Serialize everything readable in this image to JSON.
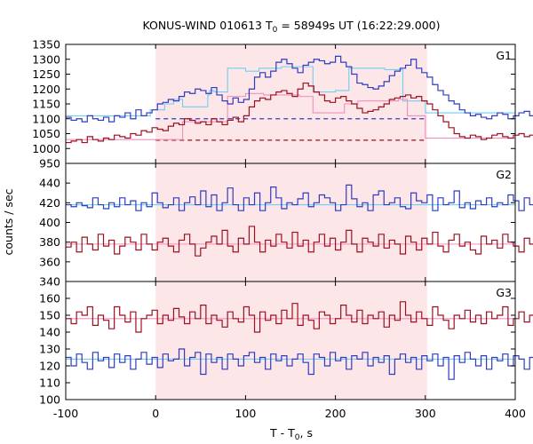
{
  "title_prefix": "KONUS-WIND 010613 T",
  "title_sub": "0",
  "title_suffix": " = 58949s UT (16:22:29.000)",
  "xlabel_prefix": "T - T",
  "xlabel_sub": "0",
  "xlabel_suffix": ", s",
  "ylabel": "counts / sec",
  "colors": {
    "blue": "#2f3cbf",
    "red": "#9c1020",
    "fit_blue": "#6fcff0",
    "fit_pink": "#f08fbf",
    "shade": "#fde6e8",
    "axis": "#000000"
  },
  "chart_data": [
    {
      "type": "line",
      "label": "G1",
      "xlim": [
        -100,
        400
      ],
      "ylim": [
        950,
        1350
      ],
      "x_ticks": [
        -100,
        0,
        100,
        200,
        300,
        400
      ],
      "y_ticks": [
        950,
        1000,
        1050,
        1100,
        1150,
        1200,
        1250,
        1300,
        1350
      ],
      "shaded_interval": [
        0,
        302
      ],
      "bin_start": -100,
      "bin_width": 6,
      "series": [
        {
          "color": "blue",
          "values": [
            1105,
            1095,
            1100,
            1090,
            1110,
            1100,
            1095,
            1105,
            1090,
            1110,
            1105,
            1120,
            1100,
            1130,
            1110,
            1120,
            1130,
            1150,
            1155,
            1165,
            1160,
            1175,
            1190,
            1185,
            1200,
            1195,
            1185,
            1205,
            1180,
            1160,
            1150,
            1170,
            1155,
            1165,
            1200,
            1240,
            1255,
            1240,
            1260,
            1290,
            1300,
            1285,
            1270,
            1255,
            1280,
            1290,
            1300,
            1295,
            1285,
            1290,
            1310,
            1290,
            1275,
            1250,
            1220,
            1215,
            1205,
            1200,
            1210,
            1225,
            1245,
            1260,
            1270,
            1280,
            1300,
            1270,
            1255,
            1240,
            1215,
            1195,
            1180,
            1160,
            1150,
            1130,
            1120,
            1110,
            1115,
            1105,
            1100,
            1110,
            1120,
            1115,
            1100,
            1110,
            1120,
            1125,
            1110,
            1105
          ]
        },
        {
          "color": "red",
          "values": [
            1020,
            1025,
            1030,
            1020,
            1040,
            1030,
            1025,
            1035,
            1030,
            1045,
            1040,
            1035,
            1050,
            1045,
            1060,
            1055,
            1070,
            1065,
            1060,
            1075,
            1085,
            1080,
            1100,
            1095,
            1085,
            1090,
            1080,
            1100,
            1090,
            1080,
            1095,
            1105,
            1090,
            1110,
            1140,
            1160,
            1170,
            1165,
            1180,
            1190,
            1195,
            1185,
            1175,
            1200,
            1220,
            1210,
            1190,
            1180,
            1160,
            1155,
            1170,
            1175,
            1160,
            1150,
            1135,
            1120,
            1125,
            1130,
            1140,
            1150,
            1165,
            1170,
            1175,
            1180,
            1170,
            1175,
            1160,
            1150,
            1130,
            1110,
            1090,
            1070,
            1050,
            1040,
            1035,
            1045,
            1040,
            1030,
            1035,
            1045,
            1050,
            1040,
            1035,
            1045,
            1050,
            1040,
            1045,
            1050
          ]
        }
      ],
      "fits": [
        {
          "color": "fit_blue",
          "steps": [
            [
              -100,
              1110
            ],
            [
              -6,
              1130
            ],
            [
              10,
              1150
            ],
            [
              20,
              1165
            ],
            [
              30,
              1140
            ],
            [
              58,
              1180
            ],
            [
              60,
              1195
            ],
            [
              65,
              1190
            ],
            [
              80,
              1270
            ],
            [
              100,
              1260
            ],
            [
              115,
              1270
            ],
            [
              140,
              1275
            ],
            [
              160,
              1275
            ],
            [
              175,
              1190
            ],
            [
              200,
              1195
            ],
            [
              215,
              1270
            ],
            [
              255,
              1265
            ],
            [
              275,
              1160
            ],
            [
              300,
              1120
            ],
            [
              400,
              1120
            ]
          ]
        },
        {
          "color": "fit_pink",
          "steps": [
            [
              -100,
              1030
            ],
            [
              -6,
              1030
            ],
            [
              30,
              1090
            ],
            [
              80,
              1175
            ],
            [
              100,
              1185
            ],
            [
              120,
              1180
            ],
            [
              160,
              1175
            ],
            [
              175,
              1120
            ],
            [
              210,
              1150
            ],
            [
              225,
              1160
            ],
            [
              270,
              1165
            ],
            [
              280,
              1110
            ],
            [
              300,
              1035
            ],
            [
              400,
              1035
            ]
          ]
        }
      ],
      "dashed_levels": [
        {
          "color": "blue",
          "value": 1100,
          "xrange": [
            0,
            302
          ]
        },
        {
          "color": "red",
          "value": 1028,
          "xrange": [
            0,
            302
          ]
        }
      ]
    },
    {
      "type": "line",
      "label": "G2",
      "xlim": [
        -100,
        400
      ],
      "ylim": [
        340,
        460
      ],
      "x_ticks": [
        -100,
        0,
        100,
        200,
        300,
        400
      ],
      "y_ticks": [
        340,
        360,
        380,
        400,
        420,
        440
      ],
      "shaded_interval": [
        0,
        302
      ],
      "bin_start": -100,
      "bin_width": 6,
      "series": [
        {
          "color": "blue",
          "values": [
            418,
            416,
            420,
            417,
            415,
            425,
            418,
            414,
            420,
            416,
            425,
            418,
            422,
            412,
            420,
            416,
            430,
            420,
            415,
            418,
            425,
            412,
            420,
            426,
            418,
            432,
            416,
            428,
            412,
            420,
            435,
            418,
            412,
            425,
            418,
            430,
            412,
            420,
            436,
            425,
            414,
            420,
            418,
            424,
            430,
            416,
            420,
            428,
            425,
            420,
            412,
            418,
            438,
            424,
            416,
            420,
            412,
            428,
            432,
            418,
            420,
            425,
            416,
            414,
            430,
            422,
            420,
            428,
            412,
            425,
            418,
            420,
            432,
            415,
            420,
            414,
            422,
            418,
            425,
            416,
            420,
            418,
            428,
            422,
            412,
            425,
            418,
            420
          ]
        },
        {
          "color": "red",
          "values": [
            375,
            380,
            370,
            385,
            378,
            372,
            388,
            376,
            382,
            368,
            376,
            385,
            380,
            372,
            388,
            378,
            372,
            380,
            384,
            376,
            370,
            382,
            388,
            378,
            366,
            374,
            380,
            386,
            378,
            392,
            376,
            370,
            384,
            378,
            396,
            380,
            370,
            382,
            376,
            388,
            380,
            374,
            390,
            376,
            382,
            370,
            380,
            388,
            376,
            384,
            372,
            380,
            392,
            378,
            370,
            384,
            380,
            376,
            388,
            374,
            382,
            378,
            368,
            386,
            380,
            372,
            384,
            378,
            390,
            376,
            370,
            382,
            388,
            376,
            380,
            372,
            368,
            386,
            378,
            382,
            374,
            388,
            380,
            376,
            370,
            384,
            378,
            382
          ]
        }
      ],
      "fits": [
        {
          "color": "fit_blue",
          "steps": [
            [
              -100,
              418
            ],
            [
              400,
              418
            ]
          ]
        },
        {
          "color": "fit_pink",
          "steps": [
            [
              -100,
              378
            ],
            [
              400,
              378
            ]
          ]
        }
      ],
      "dashed_levels": []
    },
    {
      "type": "line",
      "label": "G3",
      "xlim": [
        -100,
        400
      ],
      "ylim": [
        100,
        170
      ],
      "x_ticks": [
        -100,
        0,
        100,
        200,
        300,
        400
      ],
      "y_ticks": [
        100,
        110,
        120,
        130,
        140,
        150,
        160
      ],
      "shaded_interval": [
        0,
        302
      ],
      "bin_start": -100,
      "bin_width": 6,
      "series": [
        {
          "color": "red",
          "values": [
            148,
            145,
            152,
            150,
            155,
            144,
            150,
            147,
            142,
            155,
            150,
            146,
            152,
            140,
            148,
            150,
            153,
            145,
            150,
            147,
            154,
            149,
            145,
            152,
            148,
            156,
            145,
            150,
            147,
            143,
            152,
            148,
            146,
            155,
            150,
            140,
            152,
            147,
            150,
            145,
            153,
            148,
            157,
            144,
            150,
            147,
            142,
            152,
            150,
            145,
            148,
            156,
            150,
            146,
            153,
            145,
            150,
            148,
            152,
            143,
            150,
            147,
            158,
            150,
            146,
            152,
            148,
            144,
            155,
            150,
            147,
            142,
            150,
            148,
            153,
            146,
            150,
            145,
            152,
            148,
            150,
            155,
            144,
            148,
            152,
            146,
            150,
            143
          ]
        },
        {
          "color": "blue",
          "values": [
            125,
            120,
            127,
            122,
            118,
            128,
            123,
            125,
            119,
            127,
            122,
            126,
            118,
            124,
            128,
            121,
            125,
            119,
            127,
            123,
            124,
            130,
            120,
            125,
            128,
            115,
            127,
            122,
            125,
            118,
            127,
            124,
            120,
            126,
            128,
            122,
            125,
            118,
            127,
            123,
            126,
            120,
            124,
            127,
            122,
            115,
            127,
            125,
            120,
            128,
            123,
            125,
            118,
            126,
            124,
            128,
            120,
            125,
            122,
            126,
            115,
            124,
            127,
            122,
            125,
            118,
            126,
            123,
            127,
            120,
            125,
            112,
            126,
            122,
            128,
            124,
            120,
            126,
            118,
            125,
            123,
            127,
            120,
            126,
            124,
            118,
            125,
            122
          ]
        }
      ],
      "fits": [
        {
          "color": "fit_pink",
          "steps": [
            [
              -100,
              148
            ],
            [
              400,
              148
            ]
          ]
        },
        {
          "color": "fit_blue",
          "steps": [
            [
              -100,
              124
            ],
            [
              400,
              124
            ]
          ]
        }
      ],
      "dashed_levels": []
    }
  ]
}
